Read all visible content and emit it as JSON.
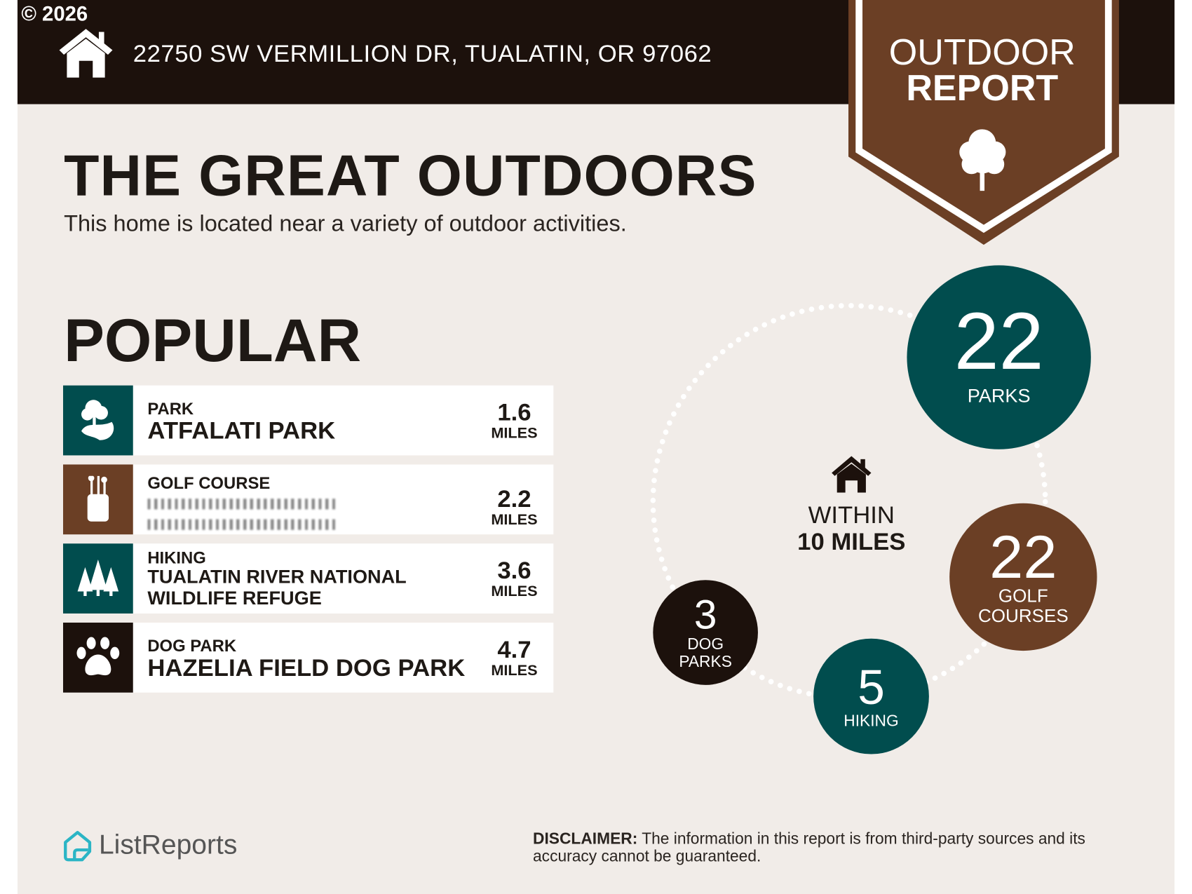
{
  "copyright": "© 2026",
  "header": {
    "address": "22750 SW VERMILLION DR, TUALATIN, OR 97062"
  },
  "badge": {
    "line1": "OUTDOOR",
    "line2": "REPORT"
  },
  "title": "THE GREAT OUTDOORS",
  "subtitle": "This home is located near a variety of outdoor activities.",
  "popular": {
    "heading": "POPULAR",
    "items": [
      {
        "category": "PARK",
        "name": "ATFALATI PARK",
        "distance": "1.6",
        "unit": "MILES",
        "icon": "park-icon",
        "color": "#014d4e"
      },
      {
        "category": "GOLF COURSE",
        "name": "",
        "distance": "2.2",
        "unit": "MILES",
        "icon": "golf-bag-icon",
        "color": "#6b3f25"
      },
      {
        "category": "HIKING",
        "name": "TUALATIN RIVER NATIONAL WILDLIFE REFUGE",
        "distance": "3.6",
        "unit": "MILES",
        "icon": "pine-trees-icon",
        "color": "#014d4e"
      },
      {
        "category": "DOG PARK",
        "name": "HAZELIA FIELD DOG PARK",
        "distance": "4.7",
        "unit": "MILES",
        "icon": "paw-icon",
        "color": "#1c110c"
      }
    ]
  },
  "radius": {
    "line1": "WITHIN",
    "line2": "10 MILES"
  },
  "counts": [
    {
      "value": "22",
      "label": "PARKS",
      "color": "#014d4e"
    },
    {
      "value": "22",
      "label": "GOLF COURSES",
      "color": "#6b3f25"
    },
    {
      "value": "5",
      "label": "HIKING",
      "color": "#014d4e"
    },
    {
      "value": "3",
      "label": "DOG PARKS",
      "color": "#1c110c"
    }
  ],
  "footer": {
    "brand": "ListReports",
    "disclaimer_label": "DISCLAIMER:",
    "disclaimer_text": " The information in this report is from third-party sources and its accuracy cannot be guaranteed."
  },
  "colors": {
    "teal": "#014d4e",
    "brown": "#6b3f25",
    "dark": "#1c110c",
    "background": "#f1ece8",
    "logo": "#2bb5c5"
  }
}
